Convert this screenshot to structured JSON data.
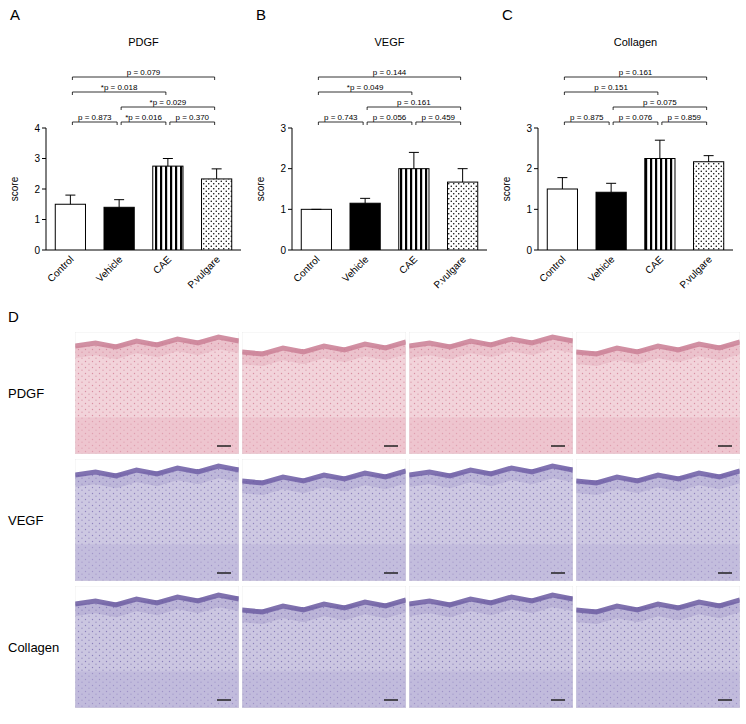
{
  "chart_data": [
    {
      "type": "bar",
      "title": "PDGF",
      "y_label": "score",
      "categories": [
        "Control",
        "Vehicle",
        "CAE",
        "P.vulgare"
      ],
      "values": [
        1.5,
        1.4,
        2.75,
        2.33
      ],
      "errors": [
        0.3,
        0.25,
        0.25,
        0.33
      ],
      "colors": [
        "#ffffff",
        "#000000",
        "#000000",
        "#000000"
      ],
      "ylim": [
        0,
        4
      ],
      "yticks": [
        0,
        1,
        2,
        3,
        4
      ],
      "annotations": [
        {
          "from": 0,
          "to": 3,
          "text": "p = 0.079"
        },
        {
          "from": 0,
          "to": 2,
          "text": "*p = 0.018"
        },
        {
          "from": 1,
          "to": 3,
          "text": "*p = 0.029"
        },
        {
          "from": 0,
          "to": 1,
          "text": "p = 0.873"
        },
        {
          "from": 1,
          "to": 2,
          "text": "*p = 0.016"
        },
        {
          "from": 2,
          "to": 3,
          "text": "p = 0.370"
        }
      ]
    },
    {
      "type": "bar",
      "title": "VEGF",
      "y_label": "score",
      "categories": [
        "Control",
        "Vehicle",
        "CAE",
        "P.vulgare"
      ],
      "values": [
        1.0,
        1.15,
        2.0,
        1.67
      ],
      "errors": [
        0,
        0.12,
        0.4,
        0.33
      ],
      "colors": [
        "#ffffff",
        "#000000",
        "#000000",
        "#000000"
      ],
      "ylim": [
        0,
        3
      ],
      "yticks": [
        0,
        1,
        2,
        3
      ],
      "annotations": [
        {
          "from": 0,
          "to": 3,
          "text": "p = 0.144"
        },
        {
          "from": 0,
          "to": 2,
          "text": "*p = 0.049"
        },
        {
          "from": 1,
          "to": 3,
          "text": "p = 0.161"
        },
        {
          "from": 0,
          "to": 1,
          "text": "p = 0.743"
        },
        {
          "from": 1,
          "to": 2,
          "text": "p = 0.056"
        },
        {
          "from": 2,
          "to": 3,
          "text": "p = 0.459"
        }
      ]
    },
    {
      "type": "bar",
      "title": "Collagen",
      "y_label": "score",
      "categories": [
        "Control",
        "Vehicle",
        "CAE",
        "P.vulgare"
      ],
      "values": [
        1.5,
        1.42,
        2.25,
        2.17
      ],
      "errors": [
        0.28,
        0.22,
        0.45,
        0.15
      ],
      "colors": [
        "#ffffff",
        "#000000",
        "#000000",
        "#000000"
      ],
      "ylim": [
        0,
        3
      ],
      "yticks": [
        0,
        1,
        2,
        3
      ],
      "annotations": [
        {
          "from": 0,
          "to": 3,
          "text": "p = 0.161"
        },
        {
          "from": 0,
          "to": 2,
          "text": "p = 0.151"
        },
        {
          "from": 1,
          "to": 3,
          "text": "p = 0.075"
        },
        {
          "from": 0,
          "to": 1,
          "text": "p = 0.875"
        },
        {
          "from": 1,
          "to": 2,
          "text": "p = 0.076"
        },
        {
          "from": 2,
          "to": 3,
          "text": "p = 0.859"
        }
      ]
    }
  ],
  "figure": {
    "panel_labels": [
      "A",
      "B",
      "C",
      "D"
    ],
    "image_rows": [
      "PDGF",
      "VEGF",
      "Collagen"
    ]
  }
}
